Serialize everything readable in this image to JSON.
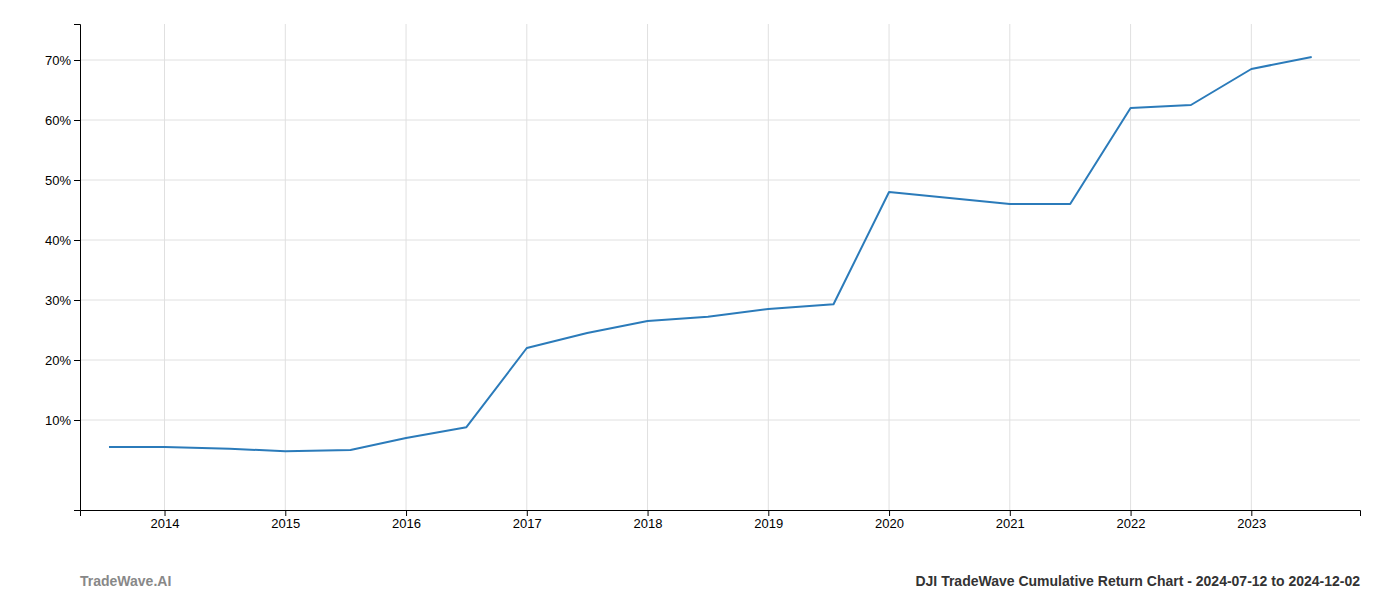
{
  "chart_data": {
    "type": "line",
    "x": [
      2013.54,
      2014.0,
      2014.54,
      2015.0,
      2015.54,
      2016.0,
      2016.5,
      2017.0,
      2017.5,
      2018.0,
      2018.5,
      2019.0,
      2019.54,
      2020.0,
      2020.5,
      2021.0,
      2021.5,
      2022.0,
      2022.5,
      2023.0,
      2023.5
    ],
    "values": [
      0.055,
      0.055,
      0.052,
      0.048,
      0.05,
      0.07,
      0.088,
      0.22,
      0.245,
      0.265,
      0.272,
      0.285,
      0.293,
      0.48,
      0.47,
      0.46,
      0.46,
      0.62,
      0.625,
      0.685,
      0.705
    ],
    "color": "#2b7bba",
    "xlim": [
      2013.3,
      2023.9
    ],
    "ylim": [
      -0.05,
      0.76
    ],
    "xticks": [
      2014,
      2015,
      2016,
      2017,
      2018,
      2019,
      2020,
      2021,
      2022,
      2023
    ],
    "yticks": [
      {
        "value": 0.1,
        "label": "10%"
      },
      {
        "value": 0.2,
        "label": "20%"
      },
      {
        "value": 0.3,
        "label": "30%"
      },
      {
        "value": 0.4,
        "label": "40%"
      },
      {
        "value": 0.5,
        "label": "50%"
      },
      {
        "value": 0.6,
        "label": "60%"
      },
      {
        "value": 0.7,
        "label": "70%"
      }
    ],
    "grid": true,
    "annotations": [
      "TradeWave.AI",
      "DJI TradeWave Cumulative Return Chart - 2024-07-12 to 2024-12-02"
    ]
  }
}
